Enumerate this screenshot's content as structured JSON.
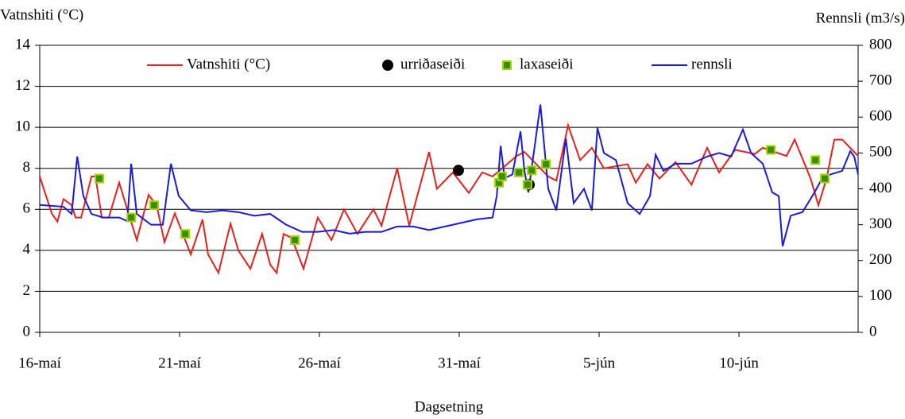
{
  "chart_data": {
    "type": "line",
    "y_title": "Vatnshiti (°C)",
    "y2_title": "Rennsli (m3/s)",
    "x_title": "Dagsetning",
    "xlim": [
      0,
      29.26
    ],
    "xticks": [
      {
        "value": 0,
        "label": "16-maí"
      },
      {
        "value": 5,
        "label": "21-maí"
      },
      {
        "value": 10,
        "label": "26-maí"
      },
      {
        "value": 15,
        "label": "31-maí"
      },
      {
        "value": 20,
        "label": "5-jún"
      },
      {
        "value": 25,
        "label": "10-jún"
      }
    ],
    "ylim": [
      0,
      14
    ],
    "yticks": [
      0,
      2,
      4,
      6,
      8,
      10,
      12,
      14
    ],
    "y2lim": [
      0,
      800
    ],
    "y2ticks": [
      0,
      100,
      200,
      300,
      400,
      500,
      600,
      700,
      800
    ],
    "grid": true,
    "legend": "top",
    "series": [
      {
        "name": "Vatnshiti (°C)",
        "kind": "line",
        "color": "#e8211b",
        "x": [
          0,
          0.43,
          0.63,
          0.85,
          1.14,
          1.28,
          1.48,
          1.85,
          1.99,
          2.22,
          2.47,
          2.84,
          3.13,
          3.47,
          3.89,
          4.18,
          4.46,
          4.83,
          5.4,
          5.82,
          6.02,
          6.39,
          6.82,
          7.1,
          7.53,
          7.95,
          8.24,
          8.47,
          8.72,
          9.01,
          9.43,
          9.94,
          10.43,
          10.88,
          11.36,
          11.93,
          12.22,
          12.78,
          13.21,
          13.92,
          14.2,
          14.77,
          15.34,
          15.82,
          16.19,
          17.05,
          17.33,
          18.18,
          18.47,
          18.89,
          19.32,
          19.74,
          20.17,
          21.02,
          21.31,
          21.73,
          22.16,
          22.73,
          23.3,
          23.86,
          24.29,
          24.86,
          25.57,
          25.85,
          26.7,
          26.99,
          27.56,
          27.84,
          28.13,
          28.41,
          28.69,
          29.26
        ],
        "values": [
          7.6,
          5.8,
          5.4,
          6.5,
          6.2,
          5.6,
          5.6,
          7.6,
          7.6,
          5.6,
          5.6,
          7.3,
          6.0,
          4.5,
          6.7,
          6.2,
          4.4,
          5.8,
          3.8,
          5.5,
          3.8,
          2.9,
          5.3,
          4.0,
          3.1,
          4.8,
          3.3,
          2.9,
          4.8,
          4.6,
          3.1,
          5.6,
          4.5,
          6.0,
          4.8,
          6.0,
          5.2,
          8.0,
          5.2,
          8.8,
          7.0,
          7.8,
          6.8,
          7.8,
          7.6,
          8.6,
          8.8,
          7.6,
          7.4,
          10.1,
          8.4,
          9.0,
          8.0,
          8.2,
          7.3,
          8.2,
          7.5,
          8.3,
          7.2,
          9.0,
          7.8,
          8.9,
          8.7,
          9.0,
          8.6,
          9.4,
          7.5,
          6.2,
          7.5,
          9.4,
          9.4,
          8.6
        ]
      },
      {
        "name": "urriðaseiði",
        "kind": "scatter",
        "marker": "circle",
        "color": "#000000",
        "x": [
          14.97,
          17.5
        ],
        "values": [
          7.9,
          7.2
        ]
      },
      {
        "name": "laxaseiði",
        "kind": "scatter",
        "marker": "square",
        "color": "#3a8f00",
        "x": [
          2.13,
          3.27,
          4.09,
          5.2,
          9.12,
          16.42,
          16.53,
          17.13,
          17.44,
          17.59,
          18.1,
          26.14,
          27.73,
          28.07
        ],
        "values": [
          7.5,
          5.6,
          6.2,
          4.8,
          4.5,
          7.3,
          7.6,
          7.8,
          7.2,
          7.9,
          8.2,
          8.9,
          8.4,
          7.5
        ]
      },
      {
        "name": "rennsli",
        "kind": "line",
        "axis": "y2",
        "color": "#1a1adb",
        "x": [
          0,
          0.85,
          1.14,
          1.34,
          1.56,
          1.85,
          2.27,
          2.84,
          3.13,
          3.27,
          3.47,
          3.98,
          4.4,
          4.69,
          4.97,
          5.4,
          5.97,
          6.53,
          7.1,
          7.67,
          8.24,
          8.81,
          9.38,
          9.94,
          10.51,
          11.08,
          11.65,
          12.22,
          12.78,
          13.35,
          13.92,
          14.49,
          15.06,
          15.63,
          16.19,
          16.34,
          16.48,
          16.62,
          16.9,
          17.19,
          17.33,
          17.47,
          17.9,
          18.18,
          18.47,
          18.81,
          19.09,
          19.46,
          19.74,
          19.94,
          20.17,
          20.6,
          21.02,
          21.45,
          21.82,
          22.02,
          22.3,
          22.73,
          23.3,
          23.86,
          24.29,
          24.72,
          25.14,
          25.43,
          25.85,
          26.19,
          26.42,
          26.56,
          26.85,
          27.27,
          27.7,
          27.98,
          28.27,
          28.69,
          28.98,
          29.12,
          29.26
        ],
        "values": [
          355,
          350,
          330,
          490,
          380,
          330,
          320,
          320,
          310,
          470,
          330,
          300,
          300,
          470,
          380,
          340,
          335,
          340,
          335,
          325,
          330,
          300,
          280,
          280,
          285,
          275,
          280,
          280,
          295,
          295,
          285,
          295,
          305,
          315,
          320,
          380,
          520,
          430,
          440,
          560,
          450,
          390,
          635,
          400,
          340,
          540,
          360,
          400,
          340,
          570,
          500,
          480,
          360,
          330,
          380,
          495,
          450,
          470,
          470,
          490,
          500,
          490,
          565,
          500,
          470,
          390,
          380,
          240,
          325,
          335,
          390,
          430,
          440,
          450,
          505,
          490,
          440
        ]
      }
    ]
  }
}
